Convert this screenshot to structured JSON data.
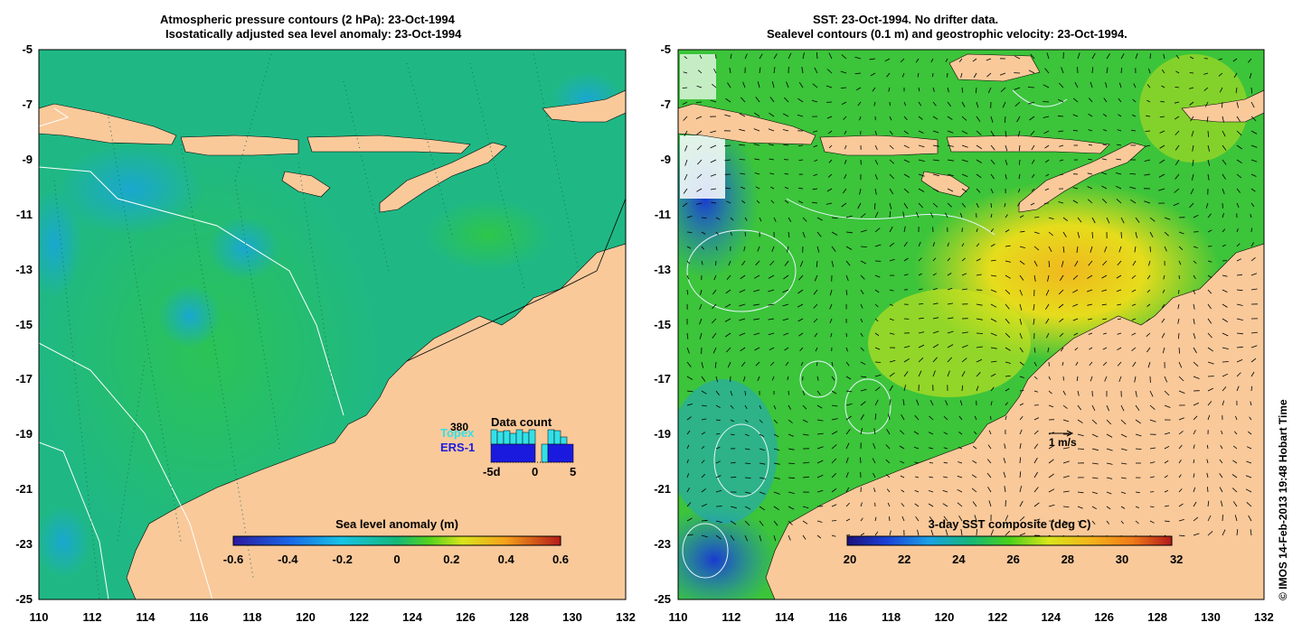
{
  "left_panel": {
    "title_line1": "Atmospheric pressure contours (2 hPa): 23-Oct-1994",
    "title_line2": "Isostatically adjusted sea level anomaly: 23-Oct-1994",
    "colorbar": {
      "title": "Sea level anomaly (m)",
      "ticks": [
        "-0.6",
        "-0.4",
        "-0.2",
        "0",
        "0.2",
        "0.4",
        "0.6"
      ]
    },
    "inset": {
      "title": "Data count",
      "max_label": "380",
      "series": [
        {
          "name": "Topex",
          "color": "#33e0e8"
        },
        {
          "name": "ERS-1",
          "color": "#1a1adf"
        }
      ],
      "x_ticks": [
        "-5d",
        "0",
        "5"
      ]
    }
  },
  "right_panel": {
    "title_line1": "SST: 23-Oct-1994. No drifter data.",
    "title_line2": "Sealevel contours (0.1 m) and geostrophic velocity: 23-Oct-1994.",
    "colorbar": {
      "title": "3-day SST composite (deg C)",
      "ticks": [
        "20",
        "22",
        "24",
        "26",
        "28",
        "30",
        "32"
      ]
    },
    "scale_label": "1 m/s"
  },
  "axes": {
    "y_ticks": [
      "-5",
      "-7",
      "-9",
      "-11",
      "-13",
      "-15",
      "-17",
      "-19",
      "-21",
      "-23",
      "-25"
    ],
    "x_ticks": [
      "110",
      "112",
      "114",
      "116",
      "118",
      "120",
      "122",
      "124",
      "126",
      "128",
      "130",
      "132"
    ]
  },
  "copyright": "© IMOS 14-Feb-2013 19:48 Hobart Time",
  "colors": {
    "land": "#f9c99a",
    "sea_left": "#1fb885",
    "ocean_mid": "#3cc43a",
    "warm": "#e8d820"
  }
}
